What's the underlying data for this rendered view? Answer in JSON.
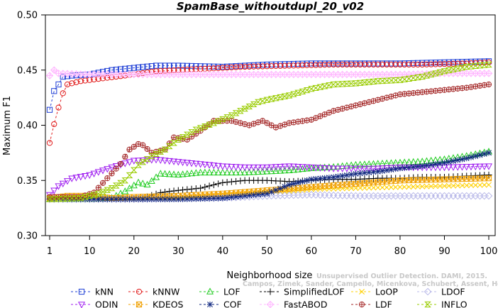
{
  "chart_data": {
    "type": "line",
    "title": "SpamBase_withoutdupl_20_v02",
    "xlabel": "Neighborhood size",
    "ylabel": "Maximum F1",
    "xlim": [
      1,
      100
    ],
    "ylim": [
      0.3,
      0.5
    ],
    "xticks": [
      "1",
      "10",
      "20",
      "30",
      "40",
      "50",
      "60",
      "70",
      "80",
      "90",
      "100"
    ],
    "yticks": [
      "0.30",
      "0.35",
      "0.40",
      "0.45",
      "0.50"
    ],
    "grid": false,
    "legend_position": "bottom",
    "watermark": [
      "Unsupervised Outlier Detection. DAMI, 2015.",
      "Campos, Zimek, Sander, Campello, Micenkova, Schubert, Assent, Houle"
    ],
    "series": [
      {
        "name": "kNN",
        "color": "#1f3fd6",
        "marker": "square",
        "points": [
          [
            1,
            0.414
          ],
          [
            2,
            0.431
          ],
          [
            3,
            0.437
          ],
          [
            4,
            0.444
          ],
          [
            6,
            0.445
          ],
          [
            10,
            0.446
          ],
          [
            15,
            0.45
          ],
          [
            20,
            0.452
          ],
          [
            25,
            0.454
          ],
          [
            30,
            0.454
          ],
          [
            40,
            0.453
          ],
          [
            50,
            0.455
          ],
          [
            60,
            0.456
          ],
          [
            70,
            0.456
          ],
          [
            80,
            0.456
          ],
          [
            90,
            0.457
          ],
          [
            100,
            0.458
          ]
        ]
      },
      {
        "name": "kNNW",
        "color": "#e01818",
        "marker": "circle",
        "points": [
          [
            1,
            0.384
          ],
          [
            2,
            0.401
          ],
          [
            3,
            0.416
          ],
          [
            4,
            0.429
          ],
          [
            5,
            0.437
          ],
          [
            8,
            0.44
          ],
          [
            12,
            0.442
          ],
          [
            18,
            0.445
          ],
          [
            25,
            0.449
          ],
          [
            35,
            0.451
          ],
          [
            45,
            0.453
          ],
          [
            55,
            0.454
          ],
          [
            65,
            0.455
          ],
          [
            75,
            0.455
          ],
          [
            85,
            0.455
          ],
          [
            95,
            0.456
          ],
          [
            100,
            0.457
          ]
        ]
      },
      {
        "name": "LOF",
        "color": "#22cc22",
        "marker": "triangle-up",
        "points": [
          [
            1,
            0.333
          ],
          [
            10,
            0.333
          ],
          [
            15,
            0.334
          ],
          [
            18,
            0.34
          ],
          [
            21,
            0.348
          ],
          [
            23,
            0.346
          ],
          [
            26,
            0.356
          ],
          [
            30,
            0.355
          ],
          [
            35,
            0.357
          ],
          [
            40,
            0.357
          ],
          [
            45,
            0.357
          ],
          [
            50,
            0.358
          ],
          [
            55,
            0.359
          ],
          [
            60,
            0.361
          ],
          [
            65,
            0.362
          ],
          [
            70,
            0.364
          ],
          [
            75,
            0.365
          ],
          [
            80,
            0.366
          ],
          [
            85,
            0.367
          ],
          [
            90,
            0.369
          ],
          [
            95,
            0.372
          ],
          [
            100,
            0.376
          ]
        ]
      },
      {
        "name": "SimplifiedLOF",
        "color": "#000000",
        "marker": "plus",
        "points": [
          [
            1,
            0.333
          ],
          [
            15,
            0.333
          ],
          [
            22,
            0.334
          ],
          [
            26,
            0.339
          ],
          [
            30,
            0.341
          ],
          [
            35,
            0.343
          ],
          [
            40,
            0.348
          ],
          [
            45,
            0.35
          ],
          [
            50,
            0.35
          ],
          [
            55,
            0.349
          ],
          [
            60,
            0.35
          ],
          [
            65,
            0.351
          ],
          [
            70,
            0.351
          ],
          [
            75,
            0.352
          ],
          [
            80,
            0.352
          ],
          [
            85,
            0.353
          ],
          [
            90,
            0.353
          ],
          [
            95,
            0.354
          ],
          [
            100,
            0.355
          ]
        ]
      },
      {
        "name": "LoOP",
        "color": "#ffd000",
        "marker": "cross",
        "points": [
          [
            1,
            0.333
          ],
          [
            10,
            0.333
          ],
          [
            20,
            0.333
          ],
          [
            30,
            0.334
          ],
          [
            40,
            0.337
          ],
          [
            50,
            0.339
          ],
          [
            60,
            0.342
          ],
          [
            70,
            0.343
          ],
          [
            80,
            0.344
          ],
          [
            90,
            0.345
          ],
          [
            100,
            0.346
          ]
        ]
      },
      {
        "name": "LDOF",
        "color": "#b8b8e8",
        "marker": "diamond",
        "points": [
          [
            1,
            0.333
          ],
          [
            20,
            0.333
          ],
          [
            40,
            0.334
          ],
          [
            50,
            0.336
          ],
          [
            60,
            0.337
          ],
          [
            70,
            0.336
          ],
          [
            80,
            0.336
          ],
          [
            90,
            0.336
          ],
          [
            100,
            0.336
          ]
        ]
      },
      {
        "name": "ODIN",
        "color": "#a020f0",
        "marker": "triangle-down",
        "points": [
          [
            1,
            0.337
          ],
          [
            3,
            0.345
          ],
          [
            6,
            0.352
          ],
          [
            10,
            0.355
          ],
          [
            15,
            0.362
          ],
          [
            20,
            0.368
          ],
          [
            25,
            0.369
          ],
          [
            30,
            0.367
          ],
          [
            35,
            0.365
          ],
          [
            40,
            0.363
          ],
          [
            45,
            0.362
          ],
          [
            50,
            0.362
          ],
          [
            55,
            0.363
          ],
          [
            60,
            0.362
          ],
          [
            65,
            0.361
          ],
          [
            70,
            0.361
          ],
          [
            75,
            0.361
          ],
          [
            80,
            0.362
          ],
          [
            90,
            0.362
          ],
          [
            100,
            0.363
          ]
        ]
      },
      {
        "name": "KDEOS",
        "color": "#f0a000",
        "marker": "square-x",
        "points": [
          [
            1,
            0.334
          ],
          [
            5,
            0.336
          ],
          [
            10,
            0.336
          ],
          [
            15,
            0.334
          ],
          [
            20,
            0.335
          ],
          [
            30,
            0.336
          ],
          [
            40,
            0.338
          ],
          [
            50,
            0.341
          ],
          [
            60,
            0.344
          ],
          [
            70,
            0.347
          ],
          [
            80,
            0.35
          ],
          [
            90,
            0.351
          ],
          [
            100,
            0.352
          ]
        ]
      },
      {
        "name": "COF",
        "color": "#102880",
        "marker": "asterisk",
        "points": [
          [
            1,
            0.333
          ],
          [
            20,
            0.333
          ],
          [
            30,
            0.333
          ],
          [
            40,
            0.334
          ],
          [
            50,
            0.338
          ],
          [
            55,
            0.346
          ],
          [
            60,
            0.351
          ],
          [
            65,
            0.353
          ],
          [
            70,
            0.356
          ],
          [
            75,
            0.358
          ],
          [
            80,
            0.361
          ],
          [
            85,
            0.363
          ],
          [
            90,
            0.366
          ],
          [
            95,
            0.37
          ],
          [
            100,
            0.375
          ]
        ]
      },
      {
        "name": "FastABOD",
        "color": "#ffb8ff",
        "marker": "diamond-plus",
        "points": [
          [
            1,
            0.445
          ],
          [
            2,
            0.45
          ],
          [
            3,
            0.447
          ],
          [
            10,
            0.446
          ],
          [
            20,
            0.446
          ],
          [
            30,
            0.446
          ],
          [
            40,
            0.446
          ],
          [
            50,
            0.446
          ],
          [
            60,
            0.446
          ],
          [
            70,
            0.446
          ],
          [
            80,
            0.446
          ],
          [
            90,
            0.447
          ],
          [
            100,
            0.447
          ]
        ]
      },
      {
        "name": "LDF",
        "color": "#a52a2a",
        "marker": "circle-plus",
        "points": [
          [
            1,
            0.335
          ],
          [
            8,
            0.335
          ],
          [
            11,
            0.339
          ],
          [
            14,
            0.352
          ],
          [
            17,
            0.365
          ],
          [
            19,
            0.378
          ],
          [
            21,
            0.383
          ],
          [
            22,
            0.382
          ],
          [
            24,
            0.375
          ],
          [
            27,
            0.378
          ],
          [
            29,
            0.389
          ],
          [
            32,
            0.387
          ],
          [
            35,
            0.395
          ],
          [
            38,
            0.404
          ],
          [
            42,
            0.404
          ],
          [
            46,
            0.4
          ],
          [
            49,
            0.404
          ],
          [
            52,
            0.398
          ],
          [
            55,
            0.402
          ],
          [
            60,
            0.405
          ],
          [
            65,
            0.413
          ],
          [
            70,
            0.418
          ],
          [
            75,
            0.423
          ],
          [
            80,
            0.428
          ],
          [
            85,
            0.43
          ],
          [
            90,
            0.432
          ],
          [
            95,
            0.434
          ],
          [
            100,
            0.437
          ]
        ]
      },
      {
        "name": "INFLO",
        "color": "#99cc00",
        "marker": "hourglass",
        "points": [
          [
            1,
            0.333
          ],
          [
            8,
            0.334
          ],
          [
            12,
            0.338
          ],
          [
            15,
            0.343
          ],
          [
            18,
            0.35
          ],
          [
            21,
            0.364
          ],
          [
            24,
            0.372
          ],
          [
            27,
            0.378
          ],
          [
            30,
            0.387
          ],
          [
            34,
            0.396
          ],
          [
            38,
            0.402
          ],
          [
            42,
            0.409
          ],
          [
            45,
            0.415
          ],
          [
            48,
            0.421
          ],
          [
            50,
            0.423
          ],
          [
            55,
            0.427
          ],
          [
            60,
            0.433
          ],
          [
            65,
            0.437
          ],
          [
            70,
            0.438
          ],
          [
            75,
            0.44
          ],
          [
            80,
            0.441
          ],
          [
            85,
            0.444
          ],
          [
            90,
            0.449
          ],
          [
            95,
            0.453
          ],
          [
            100,
            0.455
          ]
        ]
      }
    ]
  }
}
